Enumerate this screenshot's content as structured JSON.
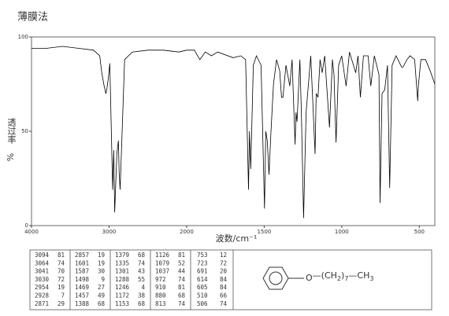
{
  "chart_data": {
    "type": "line",
    "title": "薄膜法",
    "x_label": "波数/cm⁻¹",
    "y_label": "透过率",
    "y_unit": "%",
    "color": "#000000",
    "xlim": [
      4000,
      400
    ],
    "xbreak": 2000,
    "ylim": [
      0,
      100
    ],
    "xticks": [
      4000,
      3000,
      2000,
      1500,
      1000,
      500
    ],
    "yticks": [
      0,
      50,
      100
    ],
    "x": [
      4000,
      3800,
      3600,
      3400,
      3200,
      3120,
      3094,
      3064,
      3041,
      3030,
      3010,
      2990,
      2954,
      2940,
      2928,
      2900,
      2880,
      2871,
      2857,
      2800,
      2700,
      2500,
      2300,
      2100,
      2000,
      1950,
      1915,
      1880,
      1840,
      1800,
      1700,
      1650,
      1620,
      1601,
      1595,
      1587,
      1570,
      1550,
      1520,
      1498,
      1490,
      1480,
      1469,
      1457,
      1440,
      1420,
      1400,
      1388,
      1379,
      1360,
      1335,
      1320,
      1301,
      1295,
      1288,
      1270,
      1260,
      1246,
      1230,
      1200,
      1172,
      1165,
      1153,
      1140,
      1126,
      1110,
      1079,
      1060,
      1050,
      1037,
      1020,
      1000,
      972,
      950,
      910,
      895,
      880,
      860,
      830,
      813,
      790,
      760,
      753,
      740,
      723,
      705,
      691,
      675,
      650,
      614,
      605,
      580,
      560,
      530,
      510,
      506,
      490,
      460,
      430,
      400
    ],
    "values": [
      94,
      94,
      95,
      94,
      93,
      90,
      81,
      74,
      70,
      72,
      78,
      86,
      19,
      40,
      7,
      38,
      45,
      29,
      19,
      88,
      92,
      93,
      93,
      92,
      93,
      93,
      88,
      92,
      90,
      92,
      89,
      90,
      88,
      19,
      50,
      30,
      85,
      90,
      85,
      9,
      50,
      45,
      27,
      49,
      75,
      88,
      82,
      68,
      68,
      85,
      74,
      88,
      43,
      60,
      55,
      88,
      60,
      4,
      60,
      90,
      38,
      70,
      68,
      88,
      81,
      90,
      52,
      88,
      80,
      44,
      85,
      90,
      74,
      92,
      81,
      90,
      68,
      90,
      90,
      74,
      90,
      80,
      12,
      70,
      72,
      85,
      20,
      85,
      90,
      84,
      84,
      88,
      90,
      88,
      66,
      74,
      88,
      88,
      82,
      75
    ]
  },
  "peak_table": {
    "columns": [
      [
        [
          3094,
          81
        ],
        [
          3064,
          74
        ],
        [
          3041,
          70
        ],
        [
          3030,
          72
        ],
        [
          2954,
          19
        ],
        [
          2928,
          7
        ],
        [
          2871,
          29
        ]
      ],
      [
        [
          2857,
          19
        ],
        [
          1601,
          19
        ],
        [
          1587,
          30
        ],
        [
          1498,
          9
        ],
        [
          1469,
          27
        ],
        [
          1457,
          49
        ],
        [
          1388,
          68
        ]
      ],
      [
        [
          1379,
          68
        ],
        [
          1335,
          74
        ],
        [
          1301,
          43
        ],
        [
          1288,
          55
        ],
        [
          1246,
          4
        ],
        [
          1172,
          38
        ],
        [
          1153,
          68
        ]
      ],
      [
        [
          1126,
          81
        ],
        [
          1079,
          52
        ],
        [
          1037,
          44
        ],
        [
          972,
          74
        ],
        [
          910,
          81
        ],
        [
          880,
          68
        ],
        [
          813,
          74
        ]
      ],
      [
        [
          753,
          12
        ],
        [
          723,
          72
        ],
        [
          691,
          20
        ],
        [
          614,
          84
        ],
        [
          605,
          84
        ],
        [
          510,
          66
        ],
        [
          506,
          74
        ]
      ]
    ]
  },
  "structure": {
    "parts": [
      "O",
      "—(CH",
      "2",
      ")",
      "7",
      "—CH",
      "3"
    ]
  }
}
